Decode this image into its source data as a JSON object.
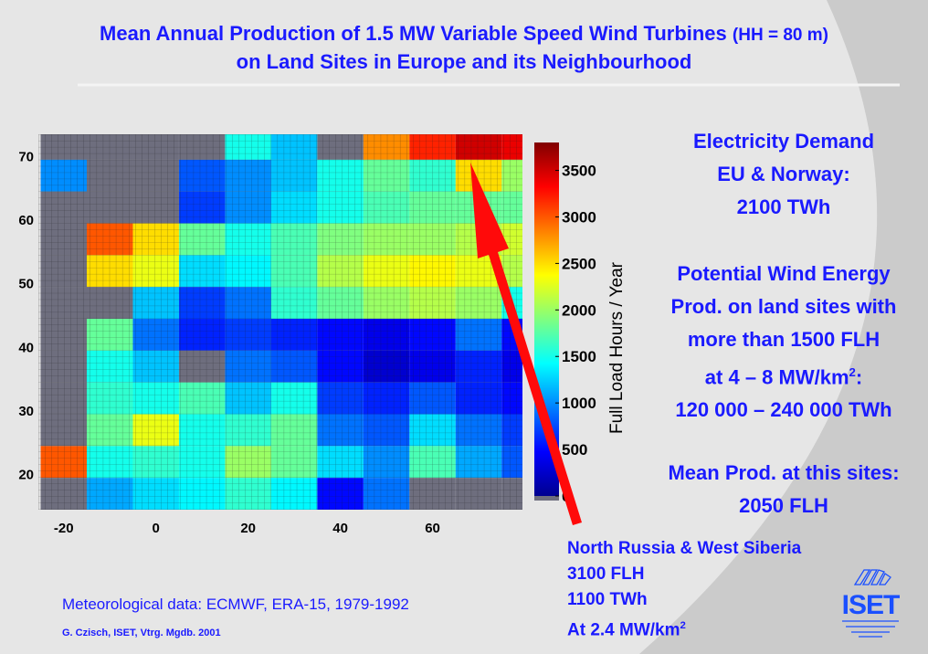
{
  "title": {
    "line1": "Mean Annual Production of 1.5 MW Variable Speed Wind Turbines",
    "line1_suffix": "(HH = 80 m)",
    "line2": "on Land Sites in Europe and its Neighbourhood"
  },
  "side_text": {
    "demand": [
      "Electricity Demand",
      "EU & Norway:",
      "2100 TWh"
    ],
    "potential": [
      "Potential Wind Energy",
      "Prod. on land sites with",
      "more than 1500 FLH",
      "at  4 – 8 MW/km",
      "120 000 – 240 000 TWh"
    ],
    "potential_sup": "2",
    "potential_colon": ":",
    "mean": [
      "Mean Prod. at this sites:",
      "2050 FLH"
    ]
  },
  "callout": {
    "lines": [
      "North Russia  & West Siberia",
      "3100 FLH",
      "1100 TWh",
      "At 2.4 MW/km"
    ],
    "sup": "2"
  },
  "footer": {
    "source": "Meteorological data: ECMWF, ERA-15, 1979-1992",
    "credit": "G. Czisch, ISET, Vtrg. Mgdb. 2001"
  },
  "logo": {
    "text": "ISET"
  },
  "colors": {
    "text_blue": "#1a1aff",
    "no_data": "#6e6e7e",
    "arrow": "#ff0a0a"
  },
  "chart_data": {
    "type": "heatmap",
    "x_ticks": [
      -20,
      0,
      20,
      40,
      60
    ],
    "y_ticks": [
      20,
      30,
      40,
      50,
      60,
      70
    ],
    "xlim": [
      -25.5,
      79.5
    ],
    "ylim": [
      14.5,
      73.5
    ],
    "lon_bins": [
      -25,
      -15,
      -5,
      5,
      15,
      25,
      35,
      45,
      55,
      65,
      75,
      80
    ],
    "lat_bins": [
      73.5,
      69.5,
      64.5,
      59.5,
      54.5,
      49.5,
      44.5,
      39.5,
      34.5,
      29.5,
      24.5,
      19.5,
      14.5
    ],
    "values": [
      [
        null,
        null,
        null,
        null,
        1500,
        1200,
        null,
        2800,
        3200,
        3500,
        3400
      ],
      [
        1000,
        null,
        null,
        800,
        1000,
        1200,
        1500,
        1800,
        1600,
        2500,
        2000
      ],
      [
        null,
        null,
        null,
        700,
        1000,
        1300,
        1500,
        1700,
        1800,
        1800,
        1800
      ],
      [
        null,
        3000,
        2500,
        1800,
        1500,
        1700,
        1900,
        2000,
        2000,
        2100,
        2200
      ],
      [
        null,
        2500,
        2300,
        1300,
        1400,
        1700,
        2100,
        2300,
        2400,
        2300,
        2100
      ],
      [
        null,
        null,
        1200,
        700,
        900,
        1600,
        1800,
        2000,
        2100,
        2000,
        1500
      ],
      [
        null,
        1800,
        900,
        600,
        700,
        600,
        500,
        400,
        500,
        900,
        500
      ],
      [
        null,
        1500,
        1200,
        null,
        900,
        800,
        500,
        300,
        400,
        600,
        400
      ],
      [
        null,
        1600,
        1500,
        1700,
        1200,
        1500,
        700,
        600,
        800,
        600,
        500
      ],
      [
        null,
        1800,
        2300,
        1500,
        1600,
        1800,
        900,
        800,
        1300,
        900,
        700
      ],
      [
        3000,
        1500,
        1600,
        1500,
        2000,
        1800,
        1300,
        1000,
        1700,
        1100,
        800
      ],
      [
        null,
        1100,
        1300,
        1400,
        1600,
        1400,
        500,
        900,
        null,
        null,
        null
      ]
    ],
    "colorbar": {
      "label": "Full Load Hours / Year",
      "ticks": [
        0,
        500,
        1000,
        1500,
        2000,
        2500,
        3000,
        3500
      ],
      "range": [
        0,
        3800
      ],
      "colormap": "jet"
    },
    "annotation": "arrow pointing to North Russia & West Siberia (~68N, 66E)"
  }
}
